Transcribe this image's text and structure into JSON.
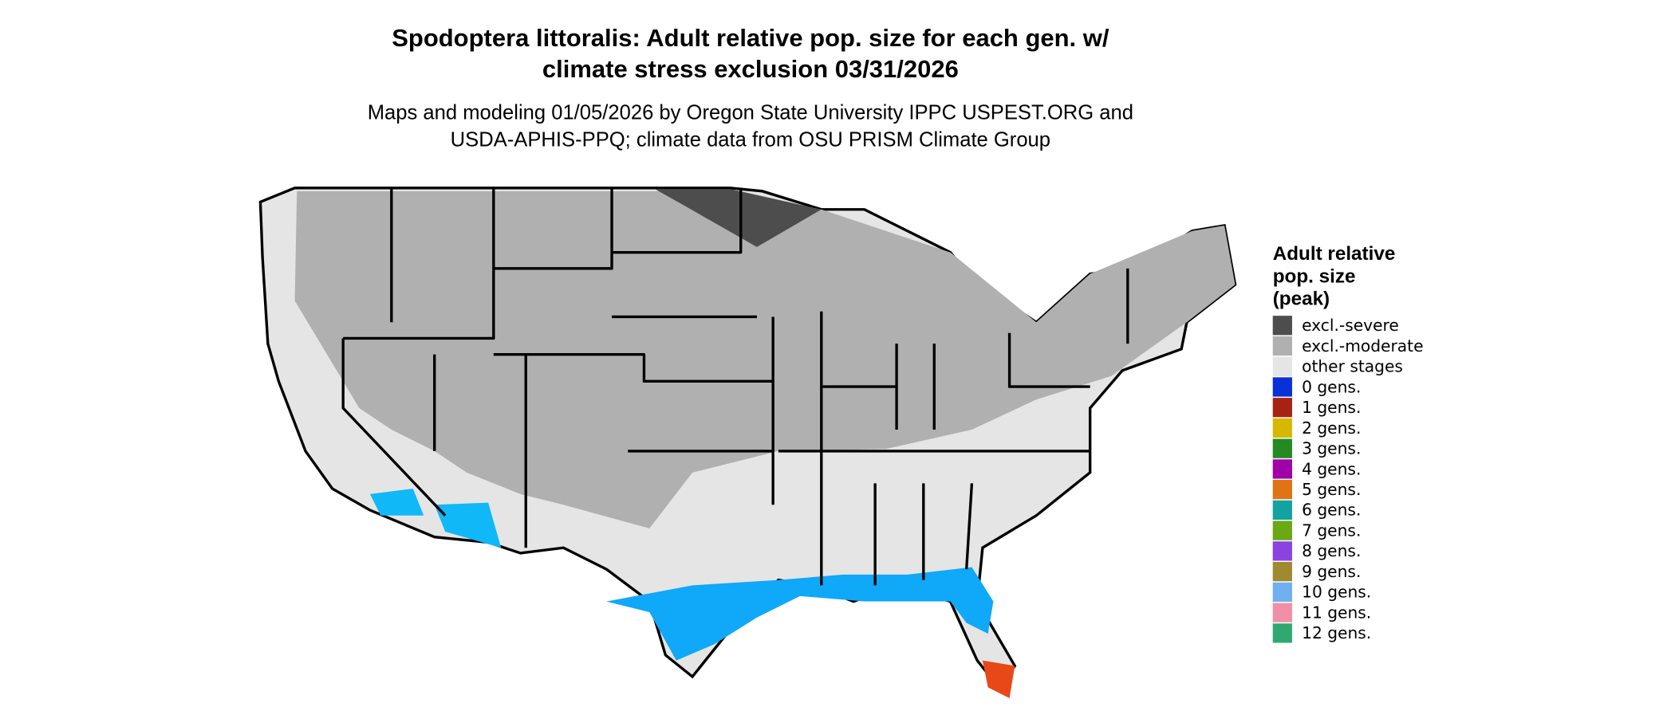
{
  "header": {
    "title": [
      "Spodoptera littoralis: Adult relative pop. size for each gen. w/",
      "climate stress exclusion 03/31/2026"
    ],
    "subtitle": [
      "Maps and modeling 01/05/2026 by Oregon State University IPPC USPEST.ORG and",
      "USDA-APHIS-PPQ; climate data from OSU PRISM Climate Group"
    ]
  },
  "legend": {
    "title": [
      "Adult relative",
      "pop. size",
      "(peak)"
    ],
    "items": [
      {
        "label": "excl.-severe",
        "color": "#4d4d4d"
      },
      {
        "label": "excl.-moderate",
        "color": "#b0b0b0"
      },
      {
        "label": "other stages",
        "color": "#e5e5e5"
      },
      {
        "label": "0 gens.",
        "color": "#0a30d8"
      },
      {
        "label": "1 gens.",
        "color": "#a82214"
      },
      {
        "label": "2 gens.",
        "color": "#d6b800"
      },
      {
        "label": "3 gens.",
        "color": "#238b22"
      },
      {
        "label": "4 gens.",
        "color": "#a000a8"
      },
      {
        "label": "5 gens.",
        "color": "#e07414"
      },
      {
        "label": "6 gens.",
        "color": "#12a2a2"
      },
      {
        "label": "7 gens.",
        "color": "#6aa814"
      },
      {
        "label": "8 gens.",
        "color": "#8a42e0"
      },
      {
        "label": "9 gens.",
        "color": "#a08a30"
      },
      {
        "label": "10 gens.",
        "color": "#70b0f0"
      },
      {
        "label": "11 gens.",
        "color": "#f090a8"
      },
      {
        "label": "12 gens.",
        "color": "#30a872"
      }
    ]
  }
}
